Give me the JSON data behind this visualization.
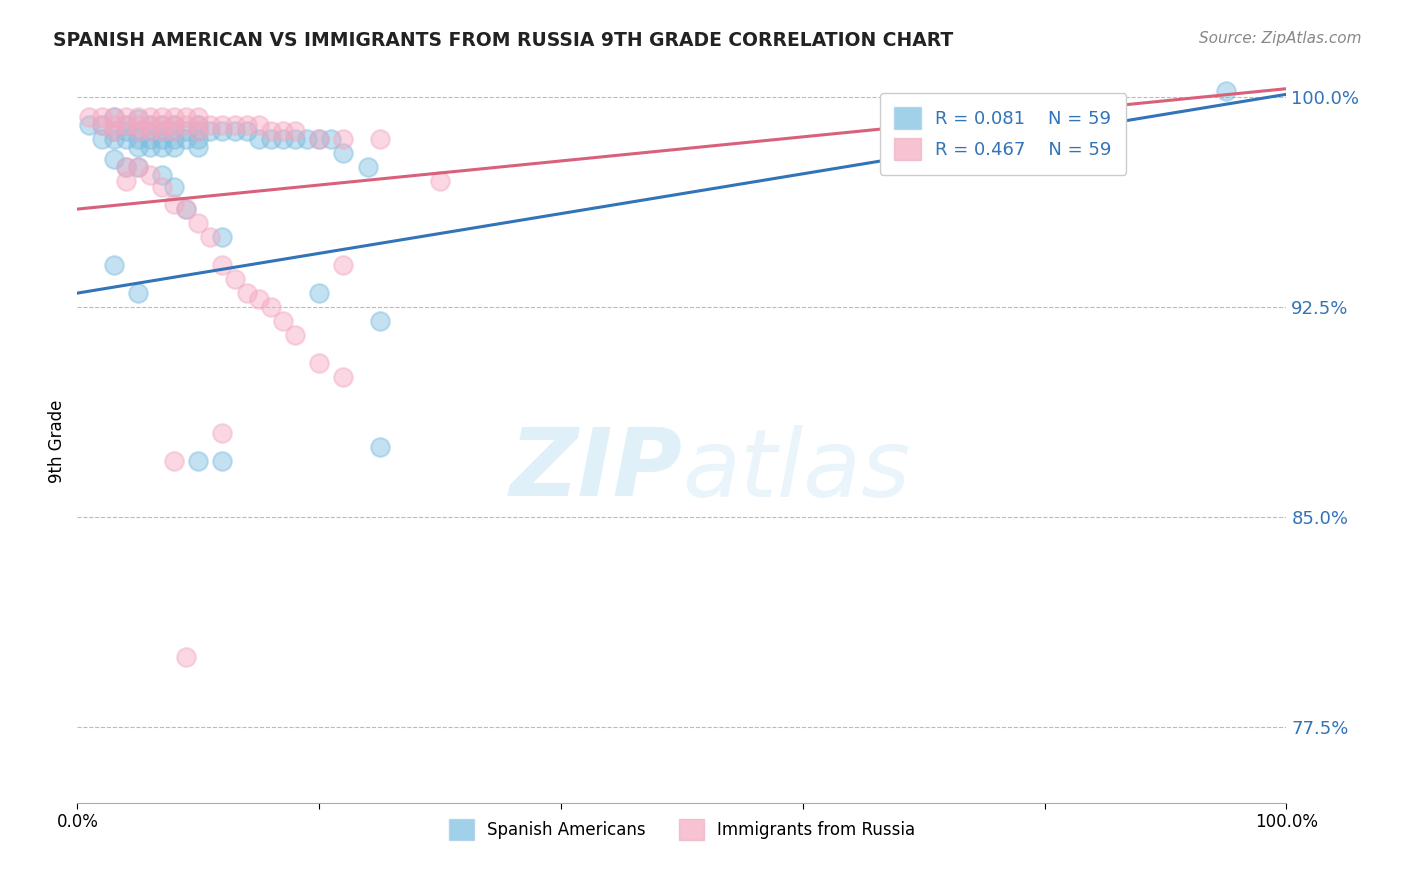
{
  "title": "SPANISH AMERICAN VS IMMIGRANTS FROM RUSSIA 9TH GRADE CORRELATION CHART",
  "source": "Source: ZipAtlas.com",
  "ylabel": "9th Grade",
  "xlim": [
    0.0,
    1.0
  ],
  "ylim": [
    0.748,
    1.006
  ],
  "yticks": [
    0.775,
    0.85,
    0.925,
    1.0
  ],
  "ytick_labels": [
    "77.5%",
    "85.0%",
    "92.5%",
    "100.0%"
  ],
  "xticks": [
    0.0,
    0.2,
    0.4,
    0.6,
    0.8,
    1.0
  ],
  "xtick_labels": [
    "0.0%",
    "",
    "",
    "",
    "",
    "100.0%"
  ],
  "r_blue": 0.081,
  "r_pink": 0.467,
  "n": 59,
  "blue_color": "#7abde0",
  "pink_color": "#f4a8c0",
  "blue_line_color": "#3373b8",
  "pink_line_color": "#d9607a",
  "blue_trend_x": [
    0.0,
    1.0
  ],
  "blue_trend_y": [
    0.93,
    1.001
  ],
  "pink_trend_x": [
    0.0,
    1.0
  ],
  "pink_trend_y": [
    0.96,
    1.003
  ],
  "blue_scatter_x": [
    0.01,
    0.02,
    0.02,
    0.03,
    0.03,
    0.03,
    0.04,
    0.04,
    0.04,
    0.05,
    0.05,
    0.05,
    0.05,
    0.06,
    0.06,
    0.06,
    0.06,
    0.07,
    0.07,
    0.07,
    0.07,
    0.08,
    0.08,
    0.08,
    0.08,
    0.09,
    0.09,
    0.1,
    0.1,
    0.1,
    0.1,
    0.11,
    0.12,
    0.13,
    0.14,
    0.15,
    0.16,
    0.17,
    0.18,
    0.19,
    0.2,
    0.21,
    0.22,
    0.24,
    0.03,
    0.04,
    0.05,
    0.07,
    0.08,
    0.09,
    0.12,
    0.2,
    0.25,
    0.05,
    0.03,
    0.95,
    0.12,
    0.25,
    0.1
  ],
  "blue_scatter_y": [
    0.99,
    0.99,
    0.985,
    0.993,
    0.988,
    0.985,
    0.99,
    0.988,
    0.985,
    0.992,
    0.988,
    0.985,
    0.982,
    0.99,
    0.988,
    0.985,
    0.982,
    0.99,
    0.988,
    0.985,
    0.982,
    0.99,
    0.988,
    0.985,
    0.982,
    0.988,
    0.985,
    0.99,
    0.988,
    0.985,
    0.982,
    0.988,
    0.988,
    0.988,
    0.988,
    0.985,
    0.985,
    0.985,
    0.985,
    0.985,
    0.985,
    0.985,
    0.98,
    0.975,
    0.978,
    0.975,
    0.975,
    0.972,
    0.968,
    0.96,
    0.95,
    0.93,
    0.92,
    0.93,
    0.94,
    1.002,
    0.87,
    0.875,
    0.87
  ],
  "pink_scatter_x": [
    0.01,
    0.02,
    0.02,
    0.03,
    0.03,
    0.03,
    0.04,
    0.04,
    0.05,
    0.05,
    0.05,
    0.06,
    0.06,
    0.06,
    0.07,
    0.07,
    0.07,
    0.08,
    0.08,
    0.08,
    0.09,
    0.09,
    0.1,
    0.1,
    0.1,
    0.11,
    0.12,
    0.13,
    0.14,
    0.15,
    0.16,
    0.17,
    0.18,
    0.2,
    0.22,
    0.25,
    0.04,
    0.05,
    0.06,
    0.07,
    0.08,
    0.09,
    0.1,
    0.11,
    0.12,
    0.13,
    0.14,
    0.15,
    0.16,
    0.17,
    0.18,
    0.2,
    0.22,
    0.08,
    0.09,
    0.12,
    0.04,
    0.22,
    0.3
  ],
  "pink_scatter_y": [
    0.993,
    0.993,
    0.99,
    0.993,
    0.99,
    0.988,
    0.993,
    0.99,
    0.993,
    0.99,
    0.988,
    0.993,
    0.99,
    0.988,
    0.993,
    0.99,
    0.988,
    0.993,
    0.99,
    0.988,
    0.993,
    0.99,
    0.993,
    0.99,
    0.988,
    0.99,
    0.99,
    0.99,
    0.99,
    0.99,
    0.988,
    0.988,
    0.988,
    0.985,
    0.985,
    0.985,
    0.975,
    0.975,
    0.972,
    0.968,
    0.962,
    0.96,
    0.955,
    0.95,
    0.94,
    0.935,
    0.93,
    0.928,
    0.925,
    0.92,
    0.915,
    0.905,
    0.9,
    0.87,
    0.8,
    0.88,
    0.97,
    0.94,
    0.97
  ]
}
